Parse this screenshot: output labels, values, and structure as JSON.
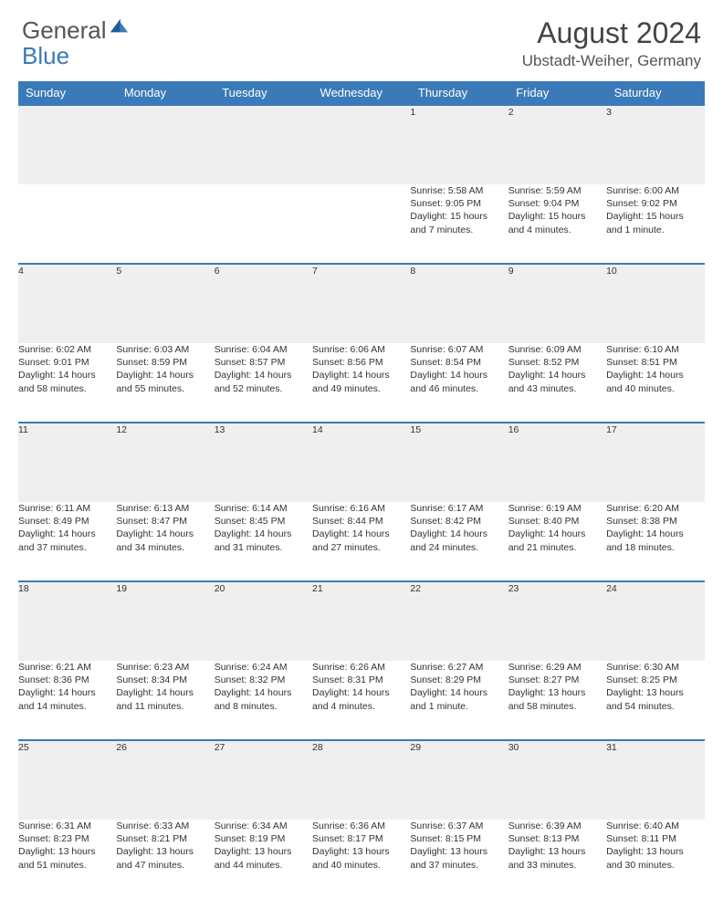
{
  "brand": {
    "part1": "General",
    "part2": "Blue"
  },
  "title": "August 2024",
  "location": "Ubstadt-Weiher, Germany",
  "colors": {
    "header_bg": "#3a7ab8",
    "header_text": "#ffffff",
    "daynum_bg": "#efefef",
    "daynum_text": "#555555",
    "body_text": "#333333",
    "page_bg": "#ffffff",
    "logo_blue": "#3a7ab8"
  },
  "weekdays": [
    "Sunday",
    "Monday",
    "Tuesday",
    "Wednesday",
    "Thursday",
    "Friday",
    "Saturday"
  ],
  "weeks": [
    [
      {
        "n": "",
        "lines": []
      },
      {
        "n": "",
        "lines": []
      },
      {
        "n": "",
        "lines": []
      },
      {
        "n": "",
        "lines": []
      },
      {
        "n": "1",
        "lines": [
          "Sunrise: 5:58 AM",
          "Sunset: 9:05 PM",
          "Daylight: 15 hours",
          "and 7 minutes."
        ]
      },
      {
        "n": "2",
        "lines": [
          "Sunrise: 5:59 AM",
          "Sunset: 9:04 PM",
          "Daylight: 15 hours",
          "and 4 minutes."
        ]
      },
      {
        "n": "3",
        "lines": [
          "Sunrise: 6:00 AM",
          "Sunset: 9:02 PM",
          "Daylight: 15 hours",
          "and 1 minute."
        ]
      }
    ],
    [
      {
        "n": "4",
        "lines": [
          "Sunrise: 6:02 AM",
          "Sunset: 9:01 PM",
          "Daylight: 14 hours",
          "and 58 minutes."
        ]
      },
      {
        "n": "5",
        "lines": [
          "Sunrise: 6:03 AM",
          "Sunset: 8:59 PM",
          "Daylight: 14 hours",
          "and 55 minutes."
        ]
      },
      {
        "n": "6",
        "lines": [
          "Sunrise: 6:04 AM",
          "Sunset: 8:57 PM",
          "Daylight: 14 hours",
          "and 52 minutes."
        ]
      },
      {
        "n": "7",
        "lines": [
          "Sunrise: 6:06 AM",
          "Sunset: 8:56 PM",
          "Daylight: 14 hours",
          "and 49 minutes."
        ]
      },
      {
        "n": "8",
        "lines": [
          "Sunrise: 6:07 AM",
          "Sunset: 8:54 PM",
          "Daylight: 14 hours",
          "and 46 minutes."
        ]
      },
      {
        "n": "9",
        "lines": [
          "Sunrise: 6:09 AM",
          "Sunset: 8:52 PM",
          "Daylight: 14 hours",
          "and 43 minutes."
        ]
      },
      {
        "n": "10",
        "lines": [
          "Sunrise: 6:10 AM",
          "Sunset: 8:51 PM",
          "Daylight: 14 hours",
          "and 40 minutes."
        ]
      }
    ],
    [
      {
        "n": "11",
        "lines": [
          "Sunrise: 6:11 AM",
          "Sunset: 8:49 PM",
          "Daylight: 14 hours",
          "and 37 minutes."
        ]
      },
      {
        "n": "12",
        "lines": [
          "Sunrise: 6:13 AM",
          "Sunset: 8:47 PM",
          "Daylight: 14 hours",
          "and 34 minutes."
        ]
      },
      {
        "n": "13",
        "lines": [
          "Sunrise: 6:14 AM",
          "Sunset: 8:45 PM",
          "Daylight: 14 hours",
          "and 31 minutes."
        ]
      },
      {
        "n": "14",
        "lines": [
          "Sunrise: 6:16 AM",
          "Sunset: 8:44 PM",
          "Daylight: 14 hours",
          "and 27 minutes."
        ]
      },
      {
        "n": "15",
        "lines": [
          "Sunrise: 6:17 AM",
          "Sunset: 8:42 PM",
          "Daylight: 14 hours",
          "and 24 minutes."
        ]
      },
      {
        "n": "16",
        "lines": [
          "Sunrise: 6:19 AM",
          "Sunset: 8:40 PM",
          "Daylight: 14 hours",
          "and 21 minutes."
        ]
      },
      {
        "n": "17",
        "lines": [
          "Sunrise: 6:20 AM",
          "Sunset: 8:38 PM",
          "Daylight: 14 hours",
          "and 18 minutes."
        ]
      }
    ],
    [
      {
        "n": "18",
        "lines": [
          "Sunrise: 6:21 AM",
          "Sunset: 8:36 PM",
          "Daylight: 14 hours",
          "and 14 minutes."
        ]
      },
      {
        "n": "19",
        "lines": [
          "Sunrise: 6:23 AM",
          "Sunset: 8:34 PM",
          "Daylight: 14 hours",
          "and 11 minutes."
        ]
      },
      {
        "n": "20",
        "lines": [
          "Sunrise: 6:24 AM",
          "Sunset: 8:32 PM",
          "Daylight: 14 hours",
          "and 8 minutes."
        ]
      },
      {
        "n": "21",
        "lines": [
          "Sunrise: 6:26 AM",
          "Sunset: 8:31 PM",
          "Daylight: 14 hours",
          "and 4 minutes."
        ]
      },
      {
        "n": "22",
        "lines": [
          "Sunrise: 6:27 AM",
          "Sunset: 8:29 PM",
          "Daylight: 14 hours",
          "and 1 minute."
        ]
      },
      {
        "n": "23",
        "lines": [
          "Sunrise: 6:29 AM",
          "Sunset: 8:27 PM",
          "Daylight: 13 hours",
          "and 58 minutes."
        ]
      },
      {
        "n": "24",
        "lines": [
          "Sunrise: 6:30 AM",
          "Sunset: 8:25 PM",
          "Daylight: 13 hours",
          "and 54 minutes."
        ]
      }
    ],
    [
      {
        "n": "25",
        "lines": [
          "Sunrise: 6:31 AM",
          "Sunset: 8:23 PM",
          "Daylight: 13 hours",
          "and 51 minutes."
        ]
      },
      {
        "n": "26",
        "lines": [
          "Sunrise: 6:33 AM",
          "Sunset: 8:21 PM",
          "Daylight: 13 hours",
          "and 47 minutes."
        ]
      },
      {
        "n": "27",
        "lines": [
          "Sunrise: 6:34 AM",
          "Sunset: 8:19 PM",
          "Daylight: 13 hours",
          "and 44 minutes."
        ]
      },
      {
        "n": "28",
        "lines": [
          "Sunrise: 6:36 AM",
          "Sunset: 8:17 PM",
          "Daylight: 13 hours",
          "and 40 minutes."
        ]
      },
      {
        "n": "29",
        "lines": [
          "Sunrise: 6:37 AM",
          "Sunset: 8:15 PM",
          "Daylight: 13 hours",
          "and 37 minutes."
        ]
      },
      {
        "n": "30",
        "lines": [
          "Sunrise: 6:39 AM",
          "Sunset: 8:13 PM",
          "Daylight: 13 hours",
          "and 33 minutes."
        ]
      },
      {
        "n": "31",
        "lines": [
          "Sunrise: 6:40 AM",
          "Sunset: 8:11 PM",
          "Daylight: 13 hours",
          "and 30 minutes."
        ]
      }
    ]
  ]
}
